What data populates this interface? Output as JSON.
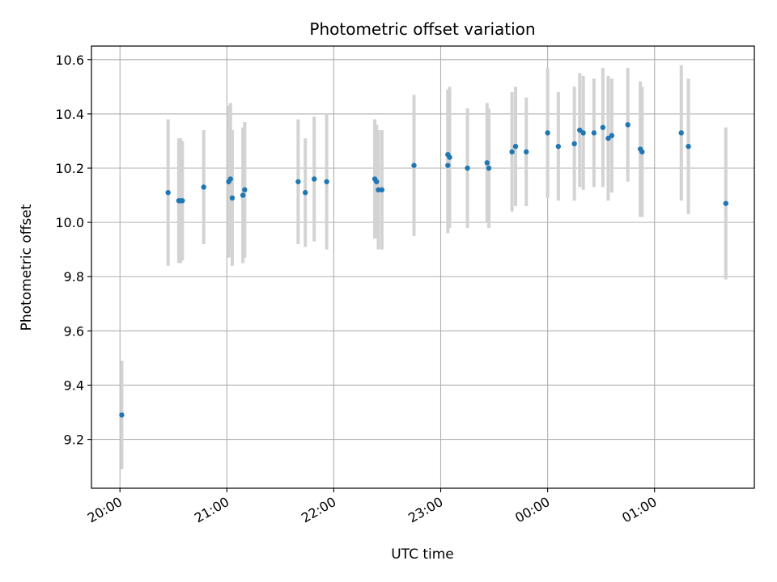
{
  "chart_data": {
    "type": "scatter",
    "title": "Photometric offset variation",
    "xlabel": "UTC time",
    "ylabel": "Photometric offset",
    "grid": true,
    "x_ticks": [
      "20:00",
      "21:00",
      "22:00",
      "23:00",
      "00:00",
      "01:00"
    ],
    "y_ticks": [
      "9.2",
      "9.4",
      "9.6",
      "9.8",
      "10.0",
      "10.2",
      "10.4",
      "10.6"
    ],
    "ylim": [
      9.02,
      10.65
    ],
    "xlim": [
      "19:44",
      "01:56"
    ],
    "colors": {
      "points": "#1f77b4",
      "errorbars": "#d3d3d3",
      "grid": "#b0b0b0"
    },
    "series": [
      {
        "x": [
          "20:01",
          "20:27",
          "20:33",
          "20:34",
          "20:35",
          "20:47",
          "21:01",
          "21:02",
          "21:03",
          "21:09",
          "21:10",
          "21:40",
          "21:44",
          "21:49",
          "21:56",
          "22:23",
          "22:24",
          "22:25",
          "22:27",
          "22:45",
          "23:04",
          "23:04",
          "23:05",
          "23:15",
          "23:26",
          "23:27",
          "23:40",
          "23:42",
          "23:48",
          "00:00",
          "00:06",
          "00:15",
          "00:18",
          "00:20",
          "00:26",
          "00:31",
          "00:34",
          "00:36",
          "00:45",
          "00:52",
          "00:53",
          "01:15",
          "01:19",
          "01:40"
        ],
        "y": [
          9.29,
          10.11,
          10.08,
          10.08,
          10.08,
          10.13,
          10.15,
          10.16,
          10.09,
          10.1,
          10.12,
          10.15,
          10.11,
          10.16,
          10.15,
          10.16,
          10.15,
          10.12,
          10.12,
          10.21,
          10.21,
          10.25,
          10.24,
          10.2,
          10.22,
          10.2,
          10.26,
          10.28,
          10.26,
          10.33,
          10.28,
          10.29,
          10.34,
          10.33,
          10.33,
          10.35,
          10.31,
          10.32,
          10.36,
          10.27,
          10.26,
          10.33,
          10.28,
          10.07
        ],
        "yerr": [
          0.2,
          0.27,
          0.23,
          0.23,
          0.22,
          0.21,
          0.28,
          0.28,
          0.25,
          0.25,
          0.25,
          0.23,
          0.2,
          0.23,
          0.25,
          0.22,
          0.21,
          0.22,
          0.22,
          0.26,
          0.25,
          0.24,
          0.26,
          0.22,
          0.22,
          0.22,
          0.22,
          0.22,
          0.2,
          0.24,
          0.2,
          0.21,
          0.21,
          0.21,
          0.2,
          0.22,
          0.23,
          0.21,
          0.21,
          0.25,
          0.24,
          0.25,
          0.25,
          0.28
        ]
      }
    ]
  }
}
